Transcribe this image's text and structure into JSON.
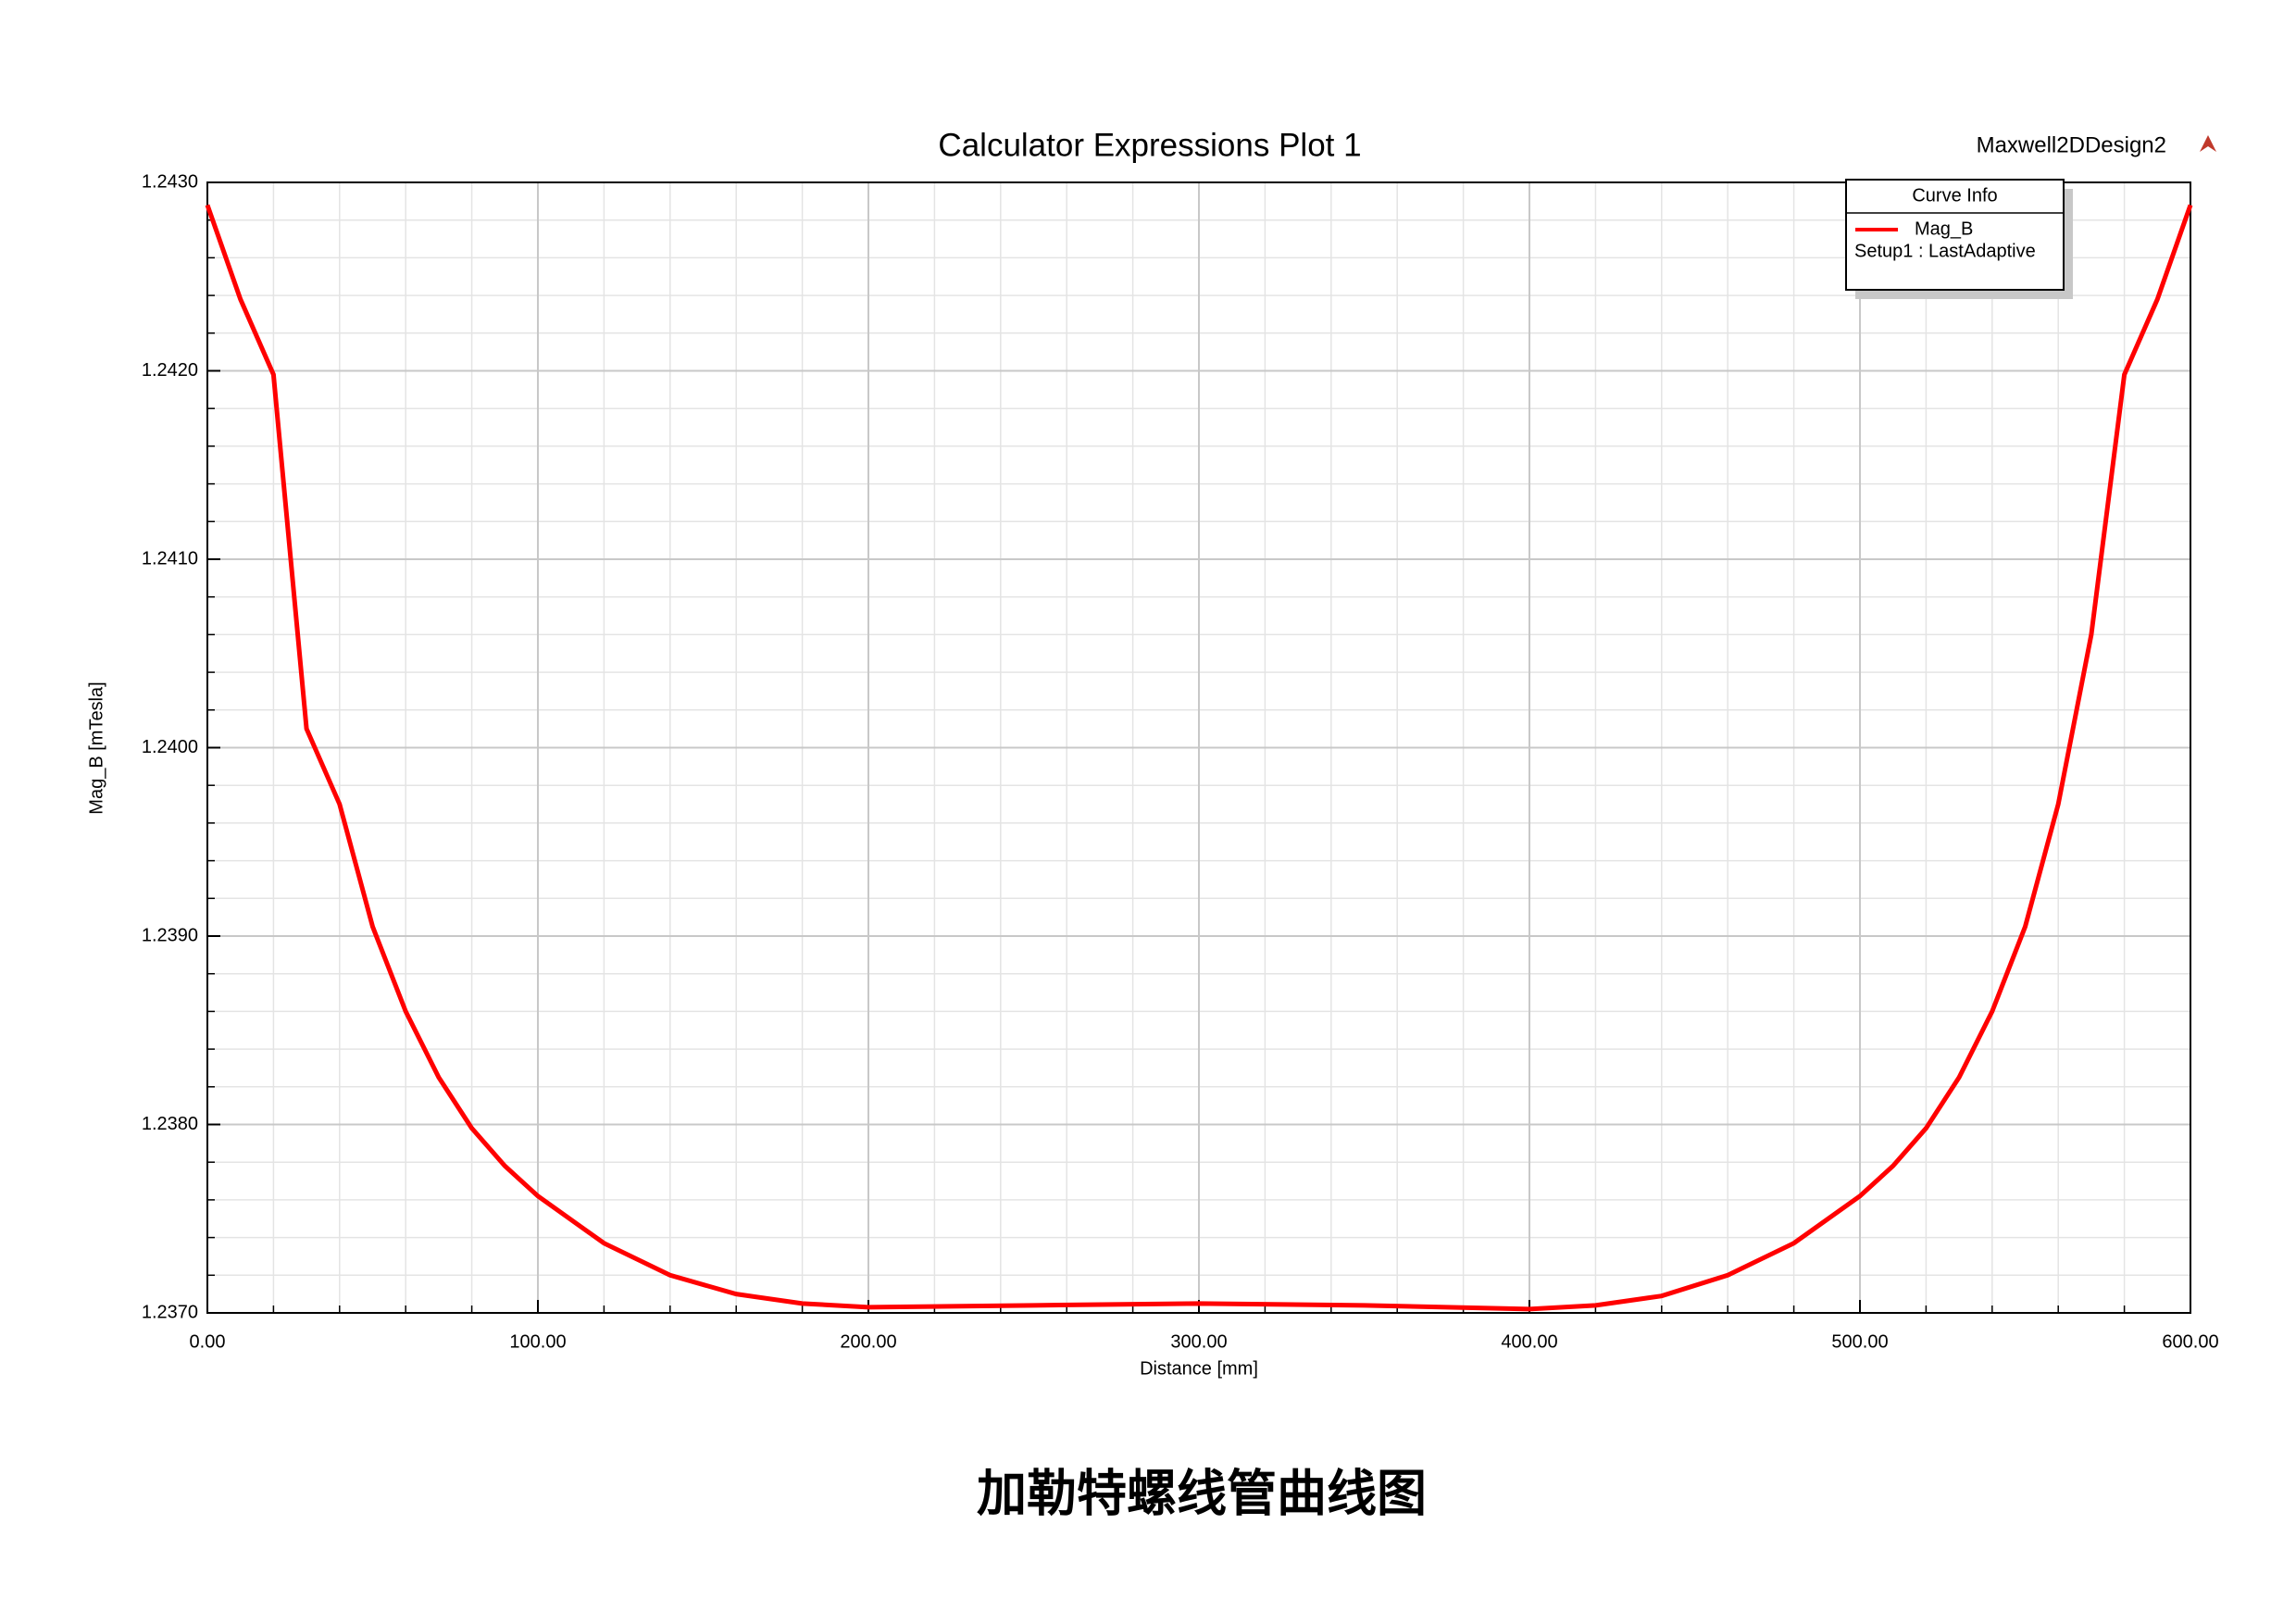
{
  "chart_data": {
    "type": "line",
    "title": "Calculator Expressions Plot 1",
    "design_name": "Maxwell2DDesign2",
    "caption": "加勒特螺线管曲线图",
    "x_label": "Distance [mm]",
    "y_label": "Mag_B [mTesla]",
    "legend_title": "Curve Info",
    "legend_position": "top-right",
    "grid": true,
    "minor_divisions": 5,
    "x": [
      0,
      10,
      20,
      30,
      40,
      50,
      60,
      70,
      80,
      90,
      100,
      120,
      140,
      160,
      180,
      200,
      250,
      300,
      350,
      400,
      420,
      440,
      460,
      480,
      500,
      510,
      520,
      530,
      540,
      550,
      560,
      570,
      580,
      590,
      600
    ],
    "series": [
      {
        "name": "Mag_B",
        "setup": "Setup1 : LastAdaptive",
        "color": "#ff0000",
        "values": [
          1.24288,
          1.24238,
          1.24198,
          1.2401,
          1.2397,
          1.23905,
          1.2386,
          1.23825,
          1.23798,
          1.23778,
          1.23762,
          1.23737,
          1.2372,
          1.2371,
          1.23705,
          1.23703,
          1.23704,
          1.23705,
          1.23704,
          1.23702,
          1.23704,
          1.23709,
          1.2372,
          1.23737,
          1.23762,
          1.23778,
          1.23798,
          1.23825,
          1.2386,
          1.23905,
          1.2397,
          1.2406,
          1.24198,
          1.24238,
          1.24288
        ]
      }
    ],
    "xlim": [
      0,
      600
    ],
    "ylim": [
      1.237,
      1.243
    ],
    "xticks": [
      {
        "value": 0,
        "label": "0.00"
      },
      {
        "value": 100,
        "label": "100.00"
      },
      {
        "value": 200,
        "label": "200.00"
      },
      {
        "value": 300,
        "label": "300.00"
      },
      {
        "value": 400,
        "label": "400.00"
      },
      {
        "value": 500,
        "label": "500.00"
      },
      {
        "value": 600,
        "label": "600.00"
      }
    ],
    "yticks": [
      {
        "value": 1.237,
        "label": "1.2370"
      },
      {
        "value": 1.238,
        "label": "1.2380"
      },
      {
        "value": 1.239,
        "label": "1.2390"
      },
      {
        "value": 1.24,
        "label": "1.2400"
      },
      {
        "value": 1.241,
        "label": "1.2410"
      },
      {
        "value": 1.242,
        "label": "1.2420"
      },
      {
        "value": 1.243,
        "label": "1.2430"
      }
    ]
  }
}
